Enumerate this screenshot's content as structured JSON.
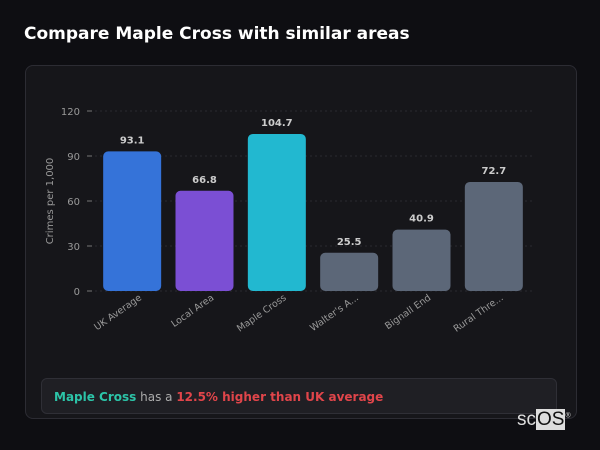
{
  "title": "Compare Maple Cross with similar areas",
  "chart_data": {
    "type": "bar",
    "ylabel": "Crimes per 1,000",
    "xlabel": "",
    "ylim": [
      0,
      120
    ],
    "yticks": [
      0,
      30,
      60,
      90,
      120
    ],
    "grid": true,
    "categories": [
      "UK Average",
      "Local Area",
      "Maple Cross",
      "Walter's A...",
      "Bignall End",
      "Rural Thre..."
    ],
    "values": [
      93.1,
      66.8,
      104.7,
      25.5,
      40.9,
      72.7
    ],
    "colors": [
      "#3573d9",
      "#7b4fd4",
      "#22b8d0",
      "#5c6778",
      "#5c6778",
      "#5c6778"
    ]
  },
  "note": {
    "area": "Maple Cross",
    "middle": " has a ",
    "comparison": "12.5% higher than UK average"
  },
  "logo": "scOS"
}
